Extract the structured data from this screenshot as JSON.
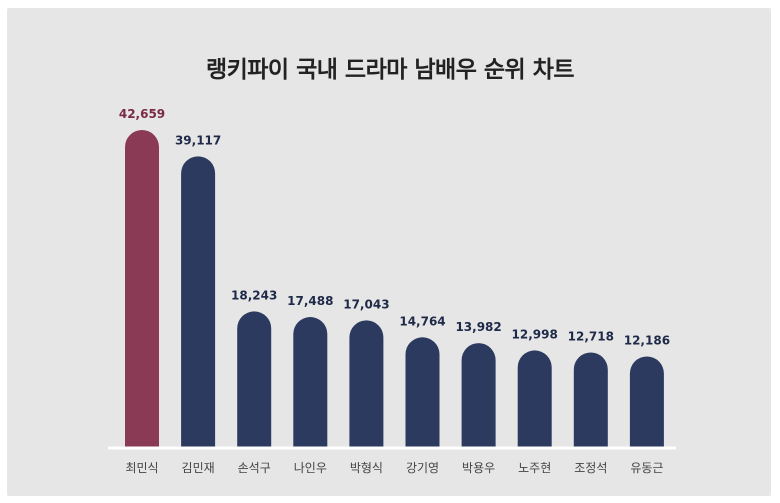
{
  "chart_data": {
    "type": "bar",
    "title": "랭키파이 국내 드라마 남배우 순위 차트",
    "categories": [
      "최민식",
      "김민재",
      "손석구",
      "나인우",
      "박형식",
      "강기영",
      "박용우",
      "노주현",
      "조정석",
      "유동근"
    ],
    "values": [
      42659,
      39117,
      18243,
      17488,
      17043,
      14764,
      13982,
      12998,
      12718,
      12186
    ],
    "value_labels": [
      "42,659",
      "39,117",
      "18,243",
      "17,488",
      "17,043",
      "14,764",
      "13,982",
      "12,998",
      "12,718",
      "12,186"
    ],
    "highlight_index": 0,
    "colors": {
      "highlight": "#8a3a55",
      "bar": "#2b3a5e",
      "highlight_label": "#7a2a45",
      "label": "#1f2a48",
      "axis": "#ffffff"
    }
  }
}
